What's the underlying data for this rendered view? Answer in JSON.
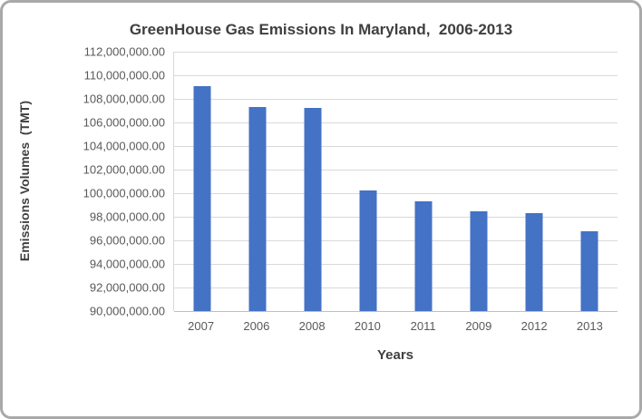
{
  "chart_data": {
    "type": "bar",
    "title": "GreenHouse Gas Emissions In Maryland,  2006-2013",
    "xlabel": "Years",
    "ylabel": "Emissions Volumes  (TMT)",
    "categories": [
      "2007",
      "2006",
      "2008",
      "2010",
      "2011",
      "2009",
      "2012",
      "2013"
    ],
    "values": [
      109100000,
      107300000,
      107200000,
      100200000,
      99300000,
      98500000,
      98300000,
      96800000
    ],
    "ylim": [
      90000000,
      112000000
    ],
    "ytick_step": 2000000,
    "ytick_format": "comma, 2 decimal places",
    "grid": true,
    "legend": "none",
    "bar_color": "#4472c4"
  },
  "colors": {
    "bar": "#4472c4",
    "gridline": "#d9d9d9",
    "axis_line": "#bfbfbf",
    "title_text": "#3f3f3f",
    "tick_text": "#595959",
    "card_border": "#a9a9a9",
    "background": "#ffffff"
  }
}
